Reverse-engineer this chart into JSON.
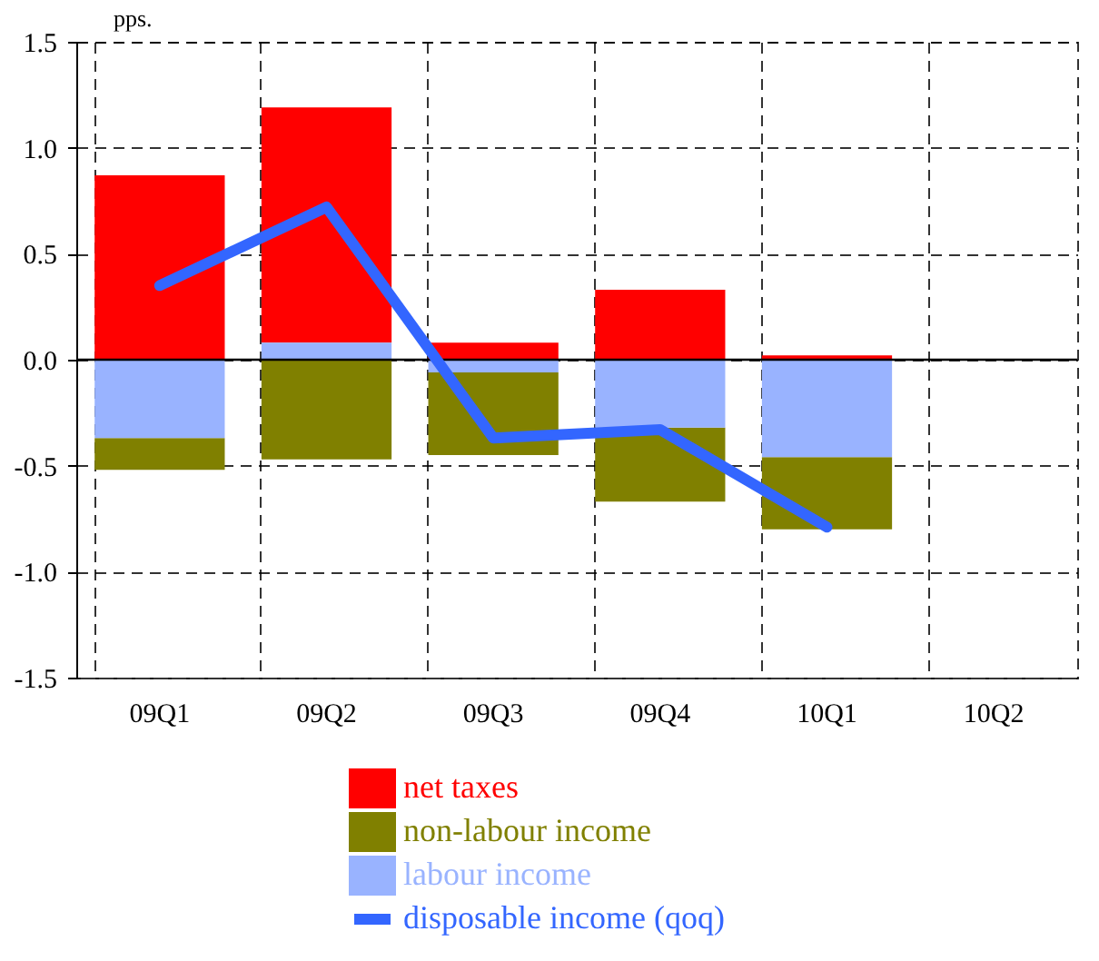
{
  "chart_data": {
    "type": "bar",
    "stacked": true,
    "ylabel": "pps.",
    "categories": [
      "09Q1",
      "09Q2",
      "09Q3",
      "09Q4",
      "10Q1",
      "10Q2"
    ],
    "series": [
      {
        "name": "net taxes",
        "color": "#ff0000",
        "values": [
          0.87,
          1.11,
          0.08,
          0.33,
          0.02,
          null
        ]
      },
      {
        "name": "non-labour income",
        "color": "#808000",
        "values": [
          -0.15,
          -0.47,
          -0.39,
          -0.35,
          -0.34,
          null
        ]
      },
      {
        "name": "labour income",
        "color": "#99b3ff",
        "values": [
          -0.37,
          0.08,
          -0.06,
          -0.32,
          -0.46,
          null
        ]
      },
      {
        "name": "disposable income (qoq)",
        "type": "line",
        "color": "#3366ff",
        "values": [
          0.35,
          0.72,
          -0.37,
          -0.33,
          -0.79,
          null
        ]
      }
    ],
    "ylim": [
      -1.5,
      1.5
    ],
    "yticks": [
      {
        "value": -1.5,
        "label": "-1.5"
      },
      {
        "value": -1,
        "label": "-1.0"
      },
      {
        "value": -0.5,
        "label": "-0.5"
      },
      {
        "value": 0,
        "label": "0.0"
      },
      {
        "value": 0.5,
        "label": "0.5"
      },
      {
        "value": 1,
        "label": "1.0"
      },
      {
        "value": 1.5,
        "label": "1.5"
      }
    ],
    "grid": true,
    "legend": "bottom",
    "ref_lines": [
      {
        "axis": "y",
        "value": 0,
        "color": "#000000"
      }
    ]
  }
}
